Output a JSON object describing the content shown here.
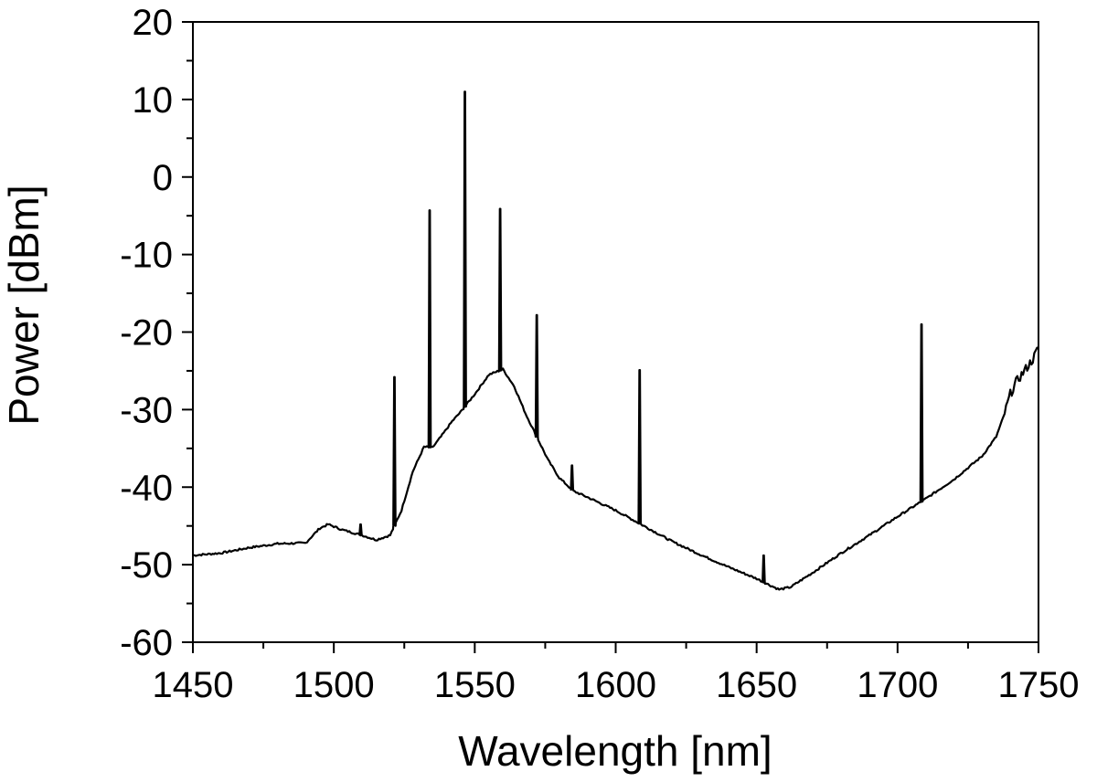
{
  "chart_data": {
    "type": "line",
    "title": "",
    "xlabel": "Wavelength [nm]",
    "ylabel": "Power [dBm]",
    "xlim": [
      1450,
      1750
    ],
    "ylim": [
      -60,
      20
    ],
    "x_ticks": [
      1450,
      1500,
      1550,
      1600,
      1650,
      1700,
      1750
    ],
    "y_ticks": [
      -60,
      -50,
      -40,
      -30,
      -20,
      -10,
      0,
      10,
      20
    ],
    "x_tick_labels": [
      "1450",
      "1500",
      "1550",
      "1600",
      "1650",
      "1700",
      "1750"
    ],
    "y_tick_labels": [
      "-60",
      "-50",
      "-40",
      "-30",
      "-20",
      "-10",
      "0",
      "10",
      "20"
    ],
    "grid": false,
    "legend": "none",
    "line_color": "#000000",
    "series": [
      {
        "baseline": [
          [
            1450,
            -48.8
          ],
          [
            1460,
            -48.5
          ],
          [
            1470,
            -47.8
          ],
          [
            1480,
            -47.3
          ],
          [
            1490,
            -47.2
          ],
          [
            1495,
            -45.3
          ],
          [
            1498,
            -44.8
          ],
          [
            1503,
            -45.5
          ],
          [
            1510,
            -46.2
          ],
          [
            1515,
            -46.8
          ],
          [
            1520,
            -46.2
          ],
          [
            1524,
            -43.0
          ],
          [
            1528,
            -38.0
          ],
          [
            1532,
            -34.8
          ],
          [
            1535,
            -34.9
          ],
          [
            1538,
            -33.5
          ],
          [
            1542,
            -31.5
          ],
          [
            1545,
            -30.3
          ],
          [
            1550,
            -28.0
          ],
          [
            1555,
            -25.5
          ],
          [
            1560,
            -24.8
          ],
          [
            1564,
            -27.0
          ],
          [
            1568,
            -30.5
          ],
          [
            1572,
            -33.5
          ],
          [
            1576,
            -36.5
          ],
          [
            1580,
            -38.8
          ],
          [
            1585,
            -40.5
          ],
          [
            1590,
            -41.3
          ],
          [
            1600,
            -43.0
          ],
          [
            1610,
            -45.0
          ],
          [
            1620,
            -47.0
          ],
          [
            1630,
            -48.7
          ],
          [
            1640,
            -50.3
          ],
          [
            1650,
            -51.8
          ],
          [
            1655,
            -52.7
          ],
          [
            1658,
            -53.2
          ],
          [
            1662,
            -52.9
          ],
          [
            1670,
            -51.0
          ],
          [
            1680,
            -48.5
          ],
          [
            1690,
            -46.2
          ],
          [
            1700,
            -43.8
          ],
          [
            1710,
            -41.5
          ],
          [
            1720,
            -39.0
          ],
          [
            1730,
            -36.0
          ],
          [
            1735,
            -33.5
          ],
          [
            1738,
            -30.5
          ],
          [
            1740,
            -28.0
          ],
          [
            1742,
            -26.5
          ],
          [
            1745,
            -25.0
          ],
          [
            1748,
            -23.5
          ],
          [
            1750,
            -22.0
          ]
        ],
        "peaks": [
          {
            "x": 1509.5,
            "y": -44.8
          },
          {
            "x": 1521.5,
            "y": -25.8
          },
          {
            "x": 1534.0,
            "y": -4.3
          },
          {
            "x": 1546.5,
            "y": 11.0
          },
          {
            "x": 1559.0,
            "y": -4.1
          },
          {
            "x": 1572.0,
            "y": -17.8
          },
          {
            "x": 1584.5,
            "y": -37.2
          },
          {
            "x": 1608.5,
            "y": -24.9
          },
          {
            "x": 1652.5,
            "y": -48.8
          },
          {
            "x": 1708.5,
            "y": -19.0
          }
        ]
      }
    ]
  }
}
